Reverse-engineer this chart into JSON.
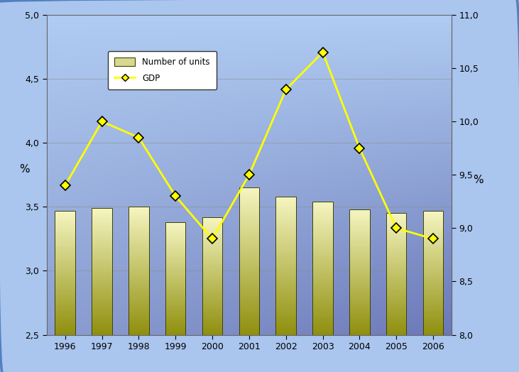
{
  "years": [
    1996,
    1997,
    1998,
    1999,
    2000,
    2001,
    2002,
    2003,
    2004,
    2005,
    2006
  ],
  "bar_values": [
    3.47,
    3.49,
    3.5,
    3.38,
    3.42,
    3.65,
    3.58,
    3.54,
    3.48,
    3.45,
    3.47
  ],
  "gdp_values": [
    9.4,
    10.0,
    9.85,
    9.3,
    8.9,
    9.5,
    10.3,
    10.65,
    9.75,
    9.0,
    8.9
  ],
  "bar_color_top": "#f5f5c0",
  "bar_color_bottom": "#909010",
  "bar_edge_color": "#404000",
  "line_color": "#ffff00",
  "marker_color": "#ffff00",
  "marker_edge_color": "#000000",
  "left_ylim": [
    2.5,
    5.0
  ],
  "right_ylim": [
    8.0,
    11.0
  ],
  "left_yticks": [
    2.5,
    3.0,
    3.5,
    4.0,
    4.5,
    5.0
  ],
  "right_yticks": [
    8.0,
    8.5,
    9.0,
    9.5,
    10.0,
    10.5,
    11.0
  ],
  "left_ylabel": "%",
  "right_ylabel": "%",
  "legend_bar_label": "Number of units",
  "legend_line_label": "GDP",
  "bg_topleft_color": [
    0.69,
    0.8,
    0.95
  ],
  "bg_topright_color": [
    0.69,
    0.8,
    0.95
  ],
  "bg_botleft_color": [
    0.55,
    0.62,
    0.82
  ],
  "bg_botright_color": [
    0.42,
    0.47,
    0.72
  ],
  "outer_bg_color": "#aac5ee",
  "border_color": "#5080c0"
}
